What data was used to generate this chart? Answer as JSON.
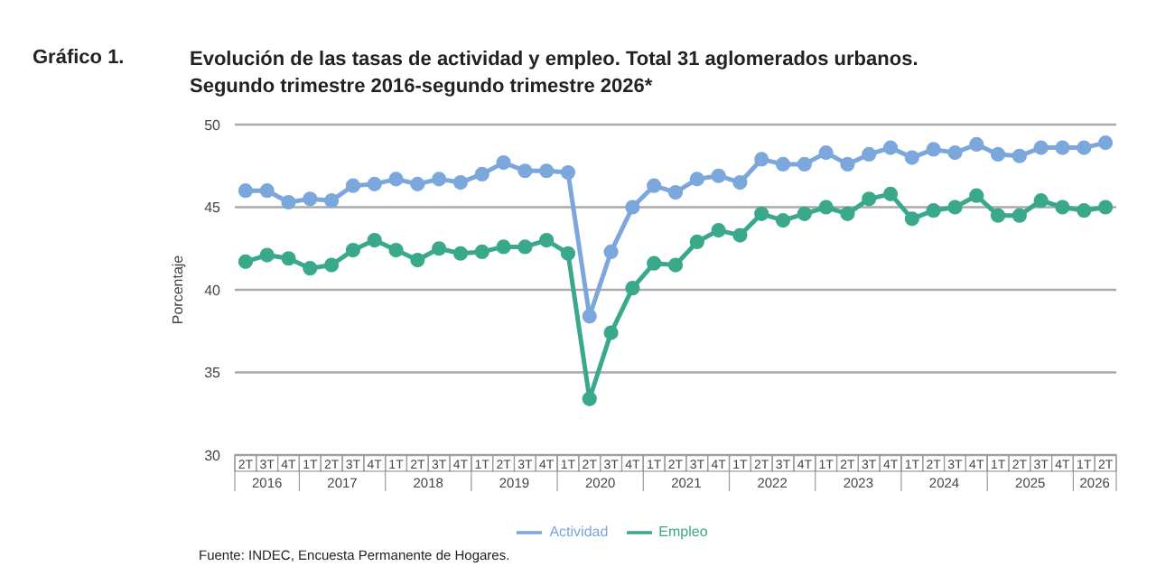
{
  "chart_data": {
    "type": "line",
    "title": "Evolución de las tasas de actividad y empleo. Total 31 aglomerados urbanos.",
    "subtitle": "Segundo trimestre 2016-segundo trimestre 2026*",
    "ylabel": "Porcentaje",
    "annotations": [
      "Gráfico 1.",
      "Fuente: INDEC, Encuesta Permanente de Hogares.",
      "2016",
      "2017",
      "2018",
      "2019",
      "2020",
      "2021",
      "2022",
      "2023",
      "2024",
      "2025",
      "2026"
    ],
    "categories": [
      "2T",
      "3T",
      "4T",
      "1T",
      "2T",
      "3T",
      "4T",
      "1T",
      "2T",
      "3T",
      "4T",
      "1T",
      "2T",
      "3T",
      "4T",
      "1T",
      "2T",
      "3T",
      "4T",
      "1T",
      "2T",
      "3T",
      "4T",
      "1T",
      "2T",
      "3T",
      "4T",
      "1T",
      "2T",
      "3T",
      "4T",
      "1T",
      "2T",
      "3T",
      "4T",
      "1T",
      "2T",
      "3T",
      "4T",
      "1T",
      "2T"
    ],
    "series": [
      {
        "name": "Actividad",
        "color": "#7ba7dc",
        "values": [
          46.0,
          46.0,
          45.3,
          45.5,
          45.4,
          46.3,
          46.4,
          46.7,
          46.4,
          46.7,
          46.5,
          47.0,
          47.7,
          47.2,
          47.2,
          47.1,
          38.4,
          42.3,
          45.0,
          46.3,
          45.9,
          46.7,
          46.9,
          46.5,
          47.9,
          47.6,
          47.6,
          48.3,
          47.6,
          48.2,
          48.6,
          48.0,
          48.5,
          48.3,
          48.8,
          48.2,
          48.1,
          48.6,
          48.6,
          48.6,
          48.9
        ]
      },
      {
        "name": "Empleo",
        "color": "#3aa88a",
        "values": [
          41.7,
          42.1,
          41.9,
          41.3,
          41.5,
          42.4,
          43.0,
          42.4,
          41.8,
          42.5,
          42.2,
          42.3,
          42.6,
          42.6,
          43.0,
          42.2,
          33.4,
          37.4,
          40.1,
          41.6,
          41.5,
          42.9,
          43.6,
          43.3,
          44.6,
          44.2,
          44.6,
          45.0,
          44.6,
          45.5,
          45.8,
          44.3,
          44.8,
          45.0,
          45.7,
          44.5,
          44.5,
          45.4,
          45.0,
          44.8,
          45.0
        ]
      }
    ],
    "ylim": [
      30,
      50
    ],
    "yticks": [
      30,
      35,
      40,
      45,
      50
    ],
    "grid": "y",
    "legend": "bottom",
    "marker": "circle",
    "line_style": "solid"
  }
}
